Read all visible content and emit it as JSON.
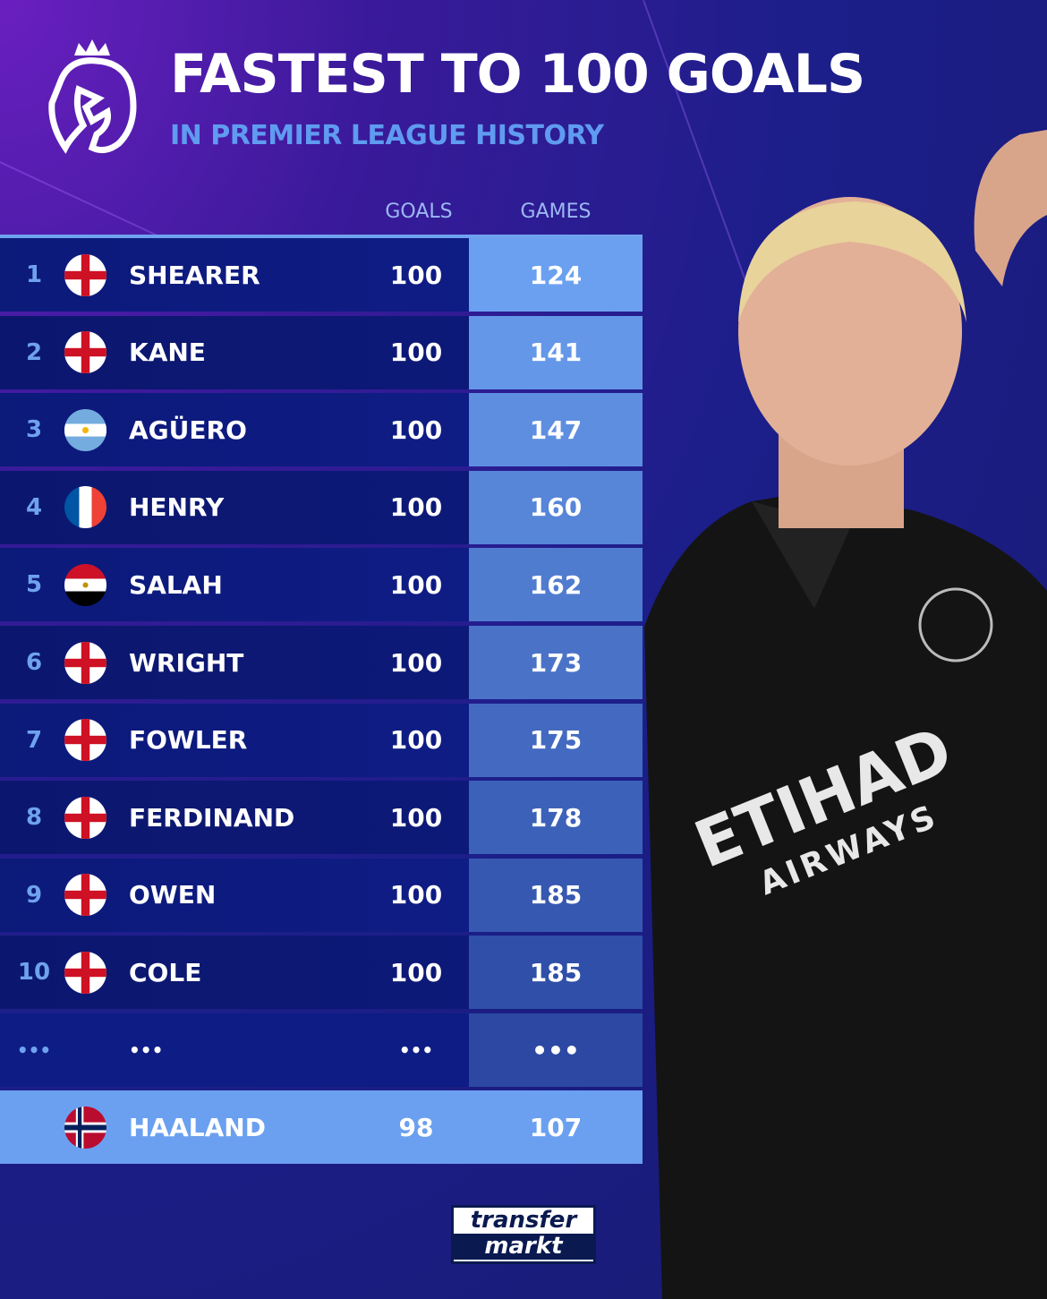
{
  "header": {
    "title": "FASTEST TO 100 GOALS",
    "subtitle": "IN PREMIER LEAGUE HISTORY",
    "logo": "premier-league-lion"
  },
  "columns": {
    "goals": "GOALS",
    "games": "GAMES"
  },
  "rows": [
    {
      "rank": "1",
      "flag": "england",
      "name": "SHEARER",
      "goals": "100",
      "games": "124"
    },
    {
      "rank": "2",
      "flag": "england",
      "name": "KANE",
      "goals": "100",
      "games": "141"
    },
    {
      "rank": "3",
      "flag": "argentina",
      "name": "AGÜERO",
      "goals": "100",
      "games": "147"
    },
    {
      "rank": "4",
      "flag": "france",
      "name": "HENRY",
      "goals": "100",
      "games": "160"
    },
    {
      "rank": "5",
      "flag": "egypt",
      "name": "SALAH",
      "goals": "100",
      "games": "162"
    },
    {
      "rank": "6",
      "flag": "england",
      "name": "WRIGHT",
      "goals": "100",
      "games": "173"
    },
    {
      "rank": "7",
      "flag": "england",
      "name": "FOWLER",
      "goals": "100",
      "games": "175"
    },
    {
      "rank": "8",
      "flag": "england",
      "name": "FERDINAND",
      "goals": "100",
      "games": "178"
    },
    {
      "rank": "9",
      "flag": "england",
      "name": "OWEN",
      "goals": "100",
      "games": "185"
    },
    {
      "rank": "10",
      "flag": "england",
      "name": "COLE",
      "goals": "100",
      "games": "185"
    }
  ],
  "ellipsis": {
    "rank": "•••",
    "name": "•••",
    "goals": "•••",
    "games": "•••"
  },
  "highlight": {
    "flag": "norway",
    "name": "HAALAND",
    "goals": "98",
    "games": "107"
  },
  "photo": {
    "sponsor": "ETIHAD",
    "sponsor2": "AIRWAYS"
  },
  "brand": {
    "line1": "transfer",
    "line2": "markt"
  },
  "colors": {
    "accent": "#6ba0f0",
    "panel": "#0c1a7a",
    "games_top": "#6ba0f0",
    "games_bottom": "#2f4fa8"
  }
}
